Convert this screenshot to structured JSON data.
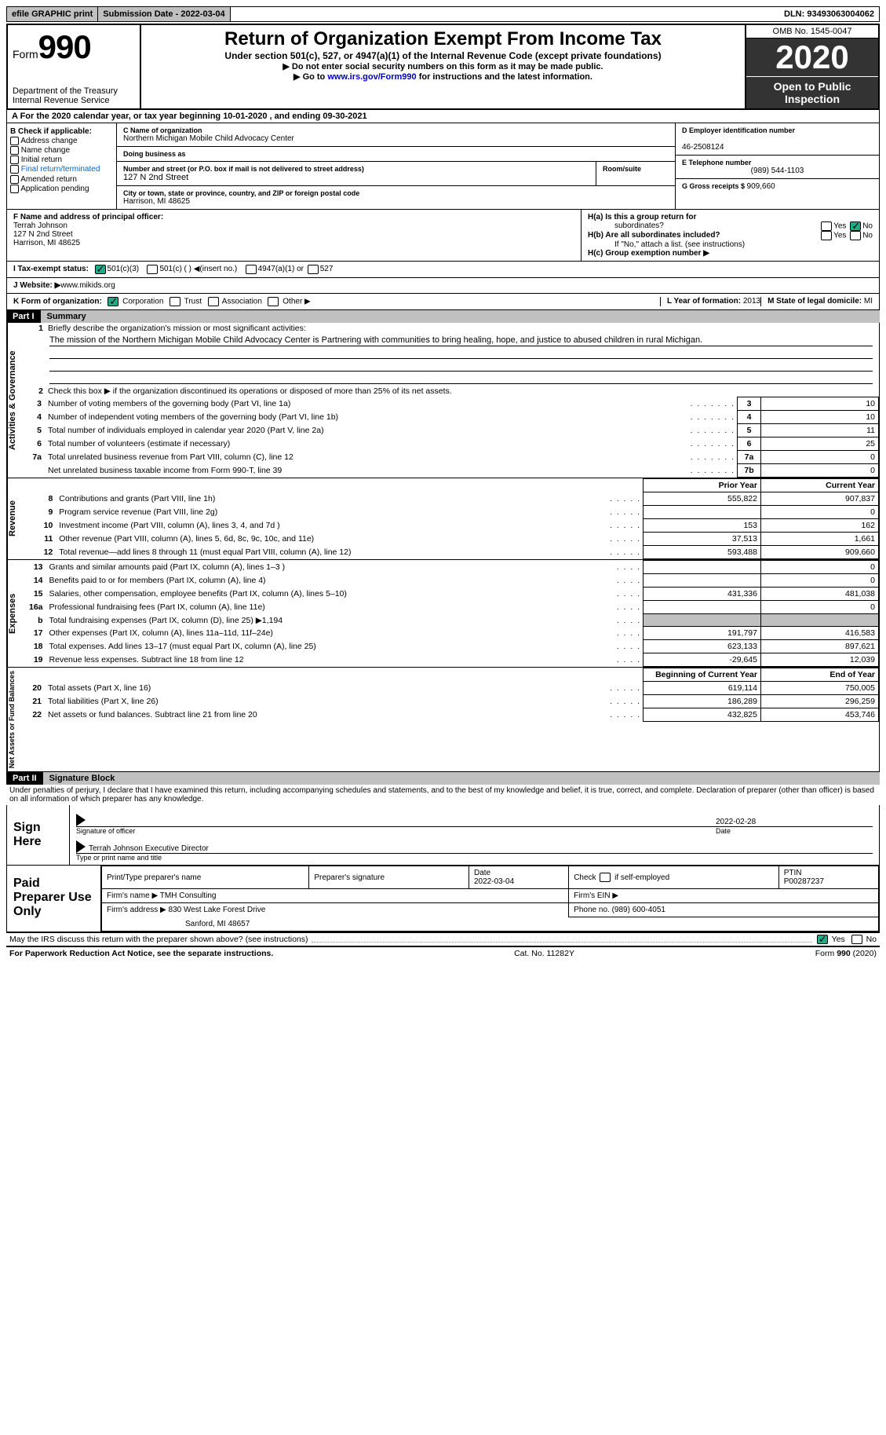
{
  "topbar": {
    "efile_btn": "efile GRAPHIC print",
    "subdate_label": "Submission Date - ",
    "subdate": "2022-03-04",
    "dln_label": "DLN: ",
    "dln": "93493063004062"
  },
  "header": {
    "form_word": "Form",
    "form_num": "990",
    "dept": "Department of the Treasury\nInternal Revenue Service",
    "title": "Return of Organization Exempt From Income Tax",
    "sub": "Under section 501(c), 527, or 4947(a)(1) of the Internal Revenue Code (except private foundations)",
    "line2": "▶ Do not enter social security numbers on this form as it may be made public.",
    "line3a": "▶ Go to ",
    "line3_link": "www.irs.gov/Form990",
    "line3b": " for instructions and the latest information.",
    "omb": "OMB No. 1545-0047",
    "year": "2020",
    "open": "Open to Public Inspection"
  },
  "rowA": "A For the 2020 calendar year, or tax year beginning 10-01-2020    , and ending 09-30-2021",
  "B": {
    "hdr": "B Check if applicable:",
    "items": [
      "Address change",
      "Name change",
      "Initial return",
      "Final return/terminated",
      "Amended return",
      "Application pending"
    ]
  },
  "C": {
    "name_lbl": "C Name of organization",
    "name": "Northern Michigan Mobile Child Advocacy Center",
    "dba_lbl": "Doing business as",
    "dba": "",
    "street_lbl": "Number and street (or P.O. box if mail is not delivered to street address)",
    "room_lbl": "Room/suite",
    "street": "127 N 2nd Street",
    "city_lbl": "City or town, state or province, country, and ZIP or foreign postal code",
    "city": "Harrison, MI  48625"
  },
  "D": {
    "ein_lbl": "D Employer identification number",
    "ein": "46-2508124",
    "tel_lbl": "E Telephone number",
    "tel": "(989) 544-1103",
    "gross_lbl": "G Gross receipts $ ",
    "gross": "909,660"
  },
  "F": {
    "lbl": "F  Name and address of principal officer:",
    "name": "Terrah Johnson",
    "street": "127 N 2nd Street",
    "city": "Harrison, MI  48625"
  },
  "H": {
    "a_lbl": "H(a)  Is this a group return for",
    "a_sub": "subordinates?",
    "b_lbl": "H(b)  Are all subordinates included?",
    "b_note": "If \"No,\" attach a list. (see instructions)",
    "c_lbl": "H(c)  Group exemption number ▶",
    "yes": "Yes",
    "no": "No"
  },
  "I": {
    "lbl": "I    Tax-exempt status:",
    "opts": [
      "501(c)(3)",
      "501(c) (  ) ◀(insert no.)",
      "4947(a)(1) or",
      "527"
    ]
  },
  "J": {
    "lbl": "J    Website: ▶  ",
    "val": "www.mikids.org"
  },
  "K": {
    "lbl": "K Form of organization:",
    "opts": [
      "Corporation",
      "Trust",
      "Association",
      "Other ▶"
    ]
  },
  "L": {
    "lbl": "L Year of formation: ",
    "val": "2013"
  },
  "M": {
    "lbl": "M State of legal domicile: ",
    "val": "MI"
  },
  "part1": {
    "hdr": "Part I",
    "title": "Summary",
    "side1": "Activities & Governance",
    "side2": "Revenue",
    "side3": "Expenses",
    "side4": "Net Assets or Fund Balances",
    "l1_lbl": "Briefly describe the organization's mission or most significant activities:",
    "l1_txt": "The mission of the Northern Michigan Mobile Child Advocacy Center is Partnering with communities to bring healing, hope, and justice to abused children in rural Michigan.",
    "l2": "Check this box ▶        if the organization discontinued its operations or disposed of more than 25% of its net assets.",
    "rows_gov": [
      {
        "n": "3",
        "t": "Number of voting members of the governing body (Part VI, line 1a)",
        "c": "3",
        "v": "10"
      },
      {
        "n": "4",
        "t": "Number of independent voting members of the governing body (Part VI, line 1b)",
        "c": "4",
        "v": "10"
      },
      {
        "n": "5",
        "t": "Total number of individuals employed in calendar year 2020 (Part V, line 2a)",
        "c": "5",
        "v": "11"
      },
      {
        "n": "6",
        "t": "Total number of volunteers (estimate if necessary)",
        "c": "6",
        "v": "25"
      },
      {
        "n": "7a",
        "t": "Total unrelated business revenue from Part VIII, column (C), line 12",
        "c": "7a",
        "v": "0"
      },
      {
        "n": "",
        "t": "Net unrelated business taxable income from Form 990-T, line 39",
        "c": "7b",
        "v": "0"
      }
    ],
    "col_py": "Prior Year",
    "col_cy": "Current Year",
    "rows_rev": [
      {
        "n": "8",
        "t": "Contributions and grants (Part VIII, line 1h)",
        "py": "555,822",
        "cy": "907,837"
      },
      {
        "n": "9",
        "t": "Program service revenue (Part VIII, line 2g)",
        "py": "",
        "cy": "0"
      },
      {
        "n": "10",
        "t": "Investment income (Part VIII, column (A), lines 3, 4, and 7d )",
        "py": "153",
        "cy": "162"
      },
      {
        "n": "11",
        "t": "Other revenue (Part VIII, column (A), lines 5, 6d, 8c, 9c, 10c, and 11e)",
        "py": "37,513",
        "cy": "1,661"
      },
      {
        "n": "12",
        "t": "Total revenue—add lines 8 through 11 (must equal Part VIII, column (A), line 12)",
        "py": "593,488",
        "cy": "909,660"
      }
    ],
    "rows_exp": [
      {
        "n": "13",
        "t": "Grants and similar amounts paid (Part IX, column (A), lines 1–3 )",
        "py": "",
        "cy": "0"
      },
      {
        "n": "14",
        "t": "Benefits paid to or for members (Part IX, column (A), line 4)",
        "py": "",
        "cy": "0"
      },
      {
        "n": "15",
        "t": "Salaries, other compensation, employee benefits (Part IX, column (A), lines 5–10)",
        "py": "431,336",
        "cy": "481,038"
      },
      {
        "n": "16a",
        "t": "Professional fundraising fees (Part IX, column (A), line 11e)",
        "py": "",
        "cy": "0"
      },
      {
        "n": "b",
        "t": "Total fundraising expenses (Part IX, column (D), line 25) ▶1,194",
        "py": "SHADE",
        "cy": "SHADE"
      },
      {
        "n": "17",
        "t": "Other expenses (Part IX, column (A), lines 11a–11d, 11f–24e)",
        "py": "191,797",
        "cy": "416,583"
      },
      {
        "n": "18",
        "t": "Total expenses. Add lines 13–17 (must equal Part IX, column (A), line 25)",
        "py": "623,133",
        "cy": "897,621"
      },
      {
        "n": "19",
        "t": "Revenue less expenses. Subtract line 18 from line 12",
        "py": "-29,645",
        "cy": "12,039"
      }
    ],
    "col_by": "Beginning of Current Year",
    "col_ey": "End of Year",
    "rows_net": [
      {
        "n": "20",
        "t": "Total assets (Part X, line 16)",
        "py": "619,114",
        "cy": "750,005"
      },
      {
        "n": "21",
        "t": "Total liabilities (Part X, line 26)",
        "py": "186,289",
        "cy": "296,259"
      },
      {
        "n": "22",
        "t": "Net assets or fund balances. Subtract line 21 from line 20",
        "py": "432,825",
        "cy": "453,746"
      }
    ]
  },
  "part2": {
    "hdr": "Part II",
    "title": "Signature Block",
    "decl": "Under penalties of perjury, I declare that I have examined this return, including accompanying schedules and statements, and to the best of my knowledge and belief, it is true, correct, and complete. Declaration of preparer (other than officer) is based on all information of which preparer has any knowledge."
  },
  "sign": {
    "left": "Sign Here",
    "sig_lbl": "Signature of officer",
    "date": "2022-02-28",
    "date_lbl": "Date",
    "name": "Terrah Johnson  Executive Director",
    "name_lbl": "Type or print name and title"
  },
  "prep": {
    "left": "Paid Preparer Use Only",
    "h1": "Print/Type preparer's name",
    "h2": "Preparer's signature",
    "h3": "Date",
    "h4": "Check        if self-employed",
    "h5": "PTIN",
    "date": "2022-03-04",
    "ptin": "P00287237",
    "firm_lbl": "Firm's name      ▶",
    "firm": "TMH Consulting",
    "ein_lbl": "Firm's EIN ▶",
    "addr_lbl": "Firm's address ▶",
    "addr1": "830 West Lake Forest Drive",
    "addr2": "Sanford, MI  48657",
    "phone_lbl": "Phone no. ",
    "phone": "(989) 600-4051"
  },
  "footer": {
    "may": "May the IRS discuss this return with the preparer shown above? (see instructions)",
    "yes": "Yes",
    "no": "No",
    "pra": "For Paperwork Reduction Act Notice, see the separate instructions.",
    "cat": "Cat. No. 11282Y",
    "form": "Form 990 (2020)"
  }
}
